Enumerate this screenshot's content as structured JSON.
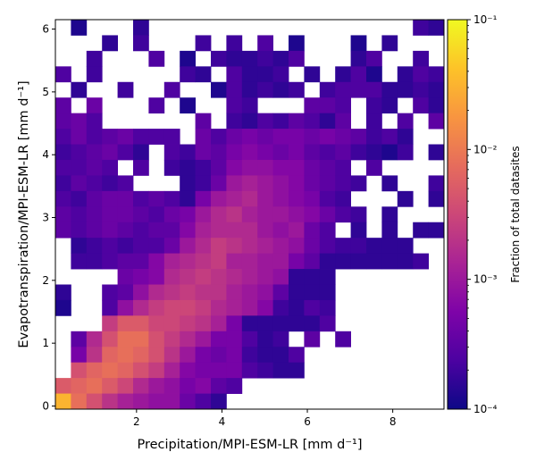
{
  "chart_data": {
    "type": "heatmap",
    "xlabel": "Precipitation/MPI-ESM-LR [mm d⁻¹]",
    "ylabel": "Evapotranspiration/MPI-ESM-LR [mm d⁻¹]",
    "xlim": [
      0.1,
      9.2
    ],
    "ylim": [
      -0.05,
      6.15
    ],
    "x_ticks": [
      2,
      4,
      6,
      8
    ],
    "y_ticks": [
      0,
      1,
      2,
      3,
      4,
      5,
      6
    ],
    "x_bin_edges": [
      0.1,
      9.2
    ],
    "y_bin_edges": [
      -0.05,
      6.15
    ],
    "n_x_bins": 25,
    "n_y_bins": 25,
    "colormap": "plasma",
    "color_scale": "log",
    "colorbar": {
      "label": "Fraction of total datasites",
      "range": [
        0.0001,
        0.1
      ],
      "ticks": [
        {
          "value": 0.0001,
          "label": "10⁻⁴"
        },
        {
          "value": 0.001,
          "label": "10⁻³"
        },
        {
          "value": 0.01,
          "label": "10⁻²"
        },
        {
          "value": 0.1,
          "label": "10⁻¹"
        }
      ]
    },
    "grid": false,
    "log10_fraction_rows_top_to_bottom": [
      [
        null,
        -3.9,
        null,
        null,
        null,
        -3.8,
        null,
        null,
        null,
        null,
        null,
        null,
        null,
        null,
        null,
        null,
        null,
        null,
        null,
        null,
        null,
        null,
        null,
        -3.7,
        -3.8
      ],
      [
        null,
        null,
        null,
        -3.8,
        null,
        -3.7,
        null,
        null,
        null,
        -3.7,
        null,
        -3.7,
        null,
        -3.6,
        null,
        -3.9,
        null,
        null,
        null,
        -3.9,
        null,
        -3.8,
        null,
        null,
        null
      ],
      [
        null,
        null,
        -3.7,
        null,
        null,
        null,
        -3.6,
        null,
        -3.9,
        null,
        -3.7,
        -3.8,
        -3.8,
        -3.7,
        -3.8,
        -3.6,
        null,
        null,
        null,
        -3.8,
        -3.6,
        null,
        null,
        -3.7,
        null
      ],
      [
        -3.6,
        null,
        -3.7,
        null,
        null,
        null,
        null,
        null,
        -3.7,
        -3.8,
        null,
        -3.6,
        -3.8,
        -3.8,
        -3.7,
        null,
        -3.8,
        null,
        -3.8,
        -3.6,
        -3.9,
        null,
        -3.8,
        -3.6,
        -3.7
      ],
      [
        null,
        -3.8,
        null,
        null,
        -3.7,
        null,
        null,
        -3.6,
        null,
        null,
        -3.9,
        -3.6,
        -3.8,
        -3.7,
        -3.8,
        -3.7,
        null,
        -3.7,
        -3.6,
        -3.6,
        -3.6,
        -3.8,
        -3.8,
        -3.7,
        -3.8
      ],
      [
        -3.5,
        null,
        -3.4,
        null,
        null,
        null,
        -3.6,
        null,
        -3.9,
        null,
        null,
        -3.6,
        -3.7,
        null,
        null,
        null,
        -3.5,
        -3.5,
        -3.6,
        null,
        -3.7,
        -3.8,
        null,
        -3.6,
        -3.8
      ],
      [
        -3.5,
        -3.4,
        -3.6,
        null,
        null,
        null,
        null,
        null,
        null,
        -3.5,
        null,
        -3.7,
        -3.8,
        -3.6,
        -3.7,
        -3.5,
        -3.6,
        -3.8,
        -3.5,
        null,
        -3.7,
        null,
        -3.6,
        null,
        -3.5
      ],
      [
        -3.6,
        -3.4,
        -3.6,
        -3.5,
        -3.4,
        -3.6,
        -3.6,
        -3.6,
        null,
        -3.4,
        -3.6,
        -3.4,
        -3.3,
        -3.4,
        -3.3,
        -3.3,
        -3.4,
        -3.3,
        -3.4,
        -3.5,
        -3.7,
        -3.6,
        -3.8,
        null,
        null
      ],
      [
        -3.7,
        -3.6,
        -3.5,
        -3.4,
        -3.6,
        -3.8,
        null,
        -3.6,
        -3.7,
        -3.4,
        -3.5,
        -3.3,
        -3.2,
        -3.3,
        -3.4,
        -3.3,
        -3.5,
        -3.6,
        -3.5,
        -3.7,
        -3.8,
        -3.9,
        -3.7,
        null,
        -3.8
      ],
      [
        -3.6,
        -3.6,
        -3.5,
        -3.6,
        null,
        -3.6,
        null,
        -3.7,
        -3.8,
        -3.7,
        -3.5,
        -3.2,
        -3.1,
        -3.1,
        -3.2,
        -3.2,
        -3.4,
        -3.5,
        -3.6,
        null,
        -3.6,
        null,
        null,
        null,
        null
      ],
      [
        -3.7,
        -3.5,
        -3.6,
        -3.7,
        -3.6,
        null,
        null,
        null,
        -3.8,
        -3.7,
        -3.4,
        -3.0,
        -2.9,
        -3.0,
        -3.1,
        -3.2,
        -3.4,
        -3.5,
        -3.6,
        -3.7,
        null,
        -3.8,
        null,
        null,
        -3.7
      ],
      [
        -3.6,
        -3.7,
        -3.5,
        -3.4,
        -3.4,
        -3.6,
        -3.5,
        -3.6,
        -3.8,
        -3.3,
        -3.0,
        -2.9,
        -2.8,
        -3.0,
        -3.1,
        -3.2,
        -3.3,
        -3.6,
        -3.7,
        null,
        null,
        null,
        -3.8,
        null,
        -3.8
      ],
      [
        -3.5,
        -3.6,
        -3.5,
        -3.4,
        -3.4,
        -3.5,
        -3.6,
        -3.4,
        -3.3,
        -3.0,
        -2.8,
        -2.7,
        -2.9,
        -3.0,
        -3.0,
        -3.1,
        -3.2,
        -3.4,
        -3.6,
        -3.7,
        null,
        -3.8,
        null,
        null,
        null
      ],
      [
        -3.5,
        -3.6,
        -3.5,
        -3.4,
        -3.5,
        -3.6,
        -3.5,
        -3.5,
        -3.2,
        -2.9,
        -2.8,
        -2.8,
        -2.8,
        -3.0,
        -3.1,
        -3.0,
        -3.4,
        -3.6,
        null,
        -3.8,
        null,
        -3.8,
        null,
        -3.8,
        -3.8
      ],
      [
        null,
        -3.8,
        -3.7,
        -3.6,
        -3.7,
        -3.6,
        -3.6,
        -3.4,
        -3.0,
        -2.8,
        -2.6,
        -2.7,
        -2.8,
        -2.9,
        -3.0,
        -3.1,
        -3.4,
        -3.6,
        -3.7,
        -3.7,
        -3.8,
        -3.8,
        -3.8,
        null,
        null
      ],
      [
        null,
        -3.7,
        -3.7,
        -3.6,
        -3.5,
        -3.5,
        -3.2,
        -2.9,
        -2.8,
        -2.7,
        -2.6,
        -2.9,
        -2.9,
        -3.0,
        -3.0,
        -3.3,
        -3.5,
        -3.8,
        -3.8,
        -3.8,
        -3.8,
        -3.8,
        -3.8,
        -3.7,
        null
      ],
      [
        null,
        null,
        null,
        null,
        -3.4,
        -3.3,
        -3.2,
        -2.8,
        -2.7,
        -2.6,
        -2.7,
        -2.8,
        -2.9,
        -3.0,
        -3.1,
        -3.8,
        -3.8,
        -3.8,
        null,
        null,
        null,
        null,
        null,
        null,
        null
      ],
      [
        -3.8,
        null,
        null,
        -3.6,
        -3.5,
        -3.1,
        -2.8,
        -2.7,
        -2.6,
        -2.7,
        -2.7,
        -2.9,
        -3.0,
        -3.1,
        -3.5,
        -3.8,
        -3.8,
        -3.8,
        null,
        null,
        null,
        null,
        null,
        null,
        null
      ],
      [
        -3.9,
        null,
        null,
        -3.6,
        -3.1,
        -2.8,
        -2.6,
        -2.5,
        -2.5,
        -2.6,
        -2.8,
        -2.9,
        -3.0,
        -3.2,
        -3.7,
        -3.8,
        -3.6,
        -3.7,
        null,
        null,
        null,
        null,
        null,
        null,
        null
      ],
      [
        null,
        null,
        null,
        -2.6,
        -2.3,
        -2.3,
        -2.5,
        -2.5,
        -2.6,
        -2.7,
        -2.9,
        -3.3,
        -3.8,
        -3.8,
        -3.8,
        -3.8,
        -3.8,
        -3.6,
        null,
        null,
        null,
        null,
        null,
        null,
        null
      ],
      [
        null,
        -3.5,
        -2.8,
        -2.4,
        -2.1,
        -2.1,
        -2.4,
        -2.6,
        -2.8,
        -3.0,
        -3.3,
        -3.3,
        -3.6,
        -3.8,
        -3.7,
        null,
        -3.5,
        null,
        -3.6,
        null,
        null,
        null,
        null,
        null,
        null
      ],
      [
        null,
        -3.3,
        -2.7,
        -2.2,
        -2.1,
        -2.2,
        -2.4,
        -2.7,
        -3.0,
        -3.3,
        -3.4,
        -3.3,
        -3.7,
        -3.8,
        -3.8,
        -3.6,
        null,
        null,
        null,
        null,
        null,
        null,
        null,
        null,
        null
      ],
      [
        null,
        -2.4,
        -2.2,
        -2.1,
        -2.2,
        -2.4,
        -2.6,
        -2.9,
        -3.2,
        -3.3,
        -3.3,
        -3.3,
        -3.6,
        -3.7,
        -3.8,
        -3.8,
        null,
        null,
        null,
        null,
        null,
        null,
        null,
        null,
        null
      ],
      [
        -2.3,
        -2.2,
        -2.1,
        -2.3,
        -2.5,
        -2.8,
        -3.0,
        -3.1,
        -3.3,
        -3.2,
        -3.5,
        -3.6,
        null,
        null,
        null,
        null,
        null,
        null,
        null,
        null,
        null,
        null,
        null,
        null,
        null
      ],
      [
        -1.5,
        -2.1,
        -2.4,
        -2.7,
        -2.9,
        -3.0,
        -3.1,
        -3.1,
        -3.4,
        -3.6,
        -3.8,
        null,
        null,
        null,
        null,
        null,
        null,
        null,
        null,
        null,
        null,
        null,
        null,
        null,
        null
      ]
    ]
  }
}
